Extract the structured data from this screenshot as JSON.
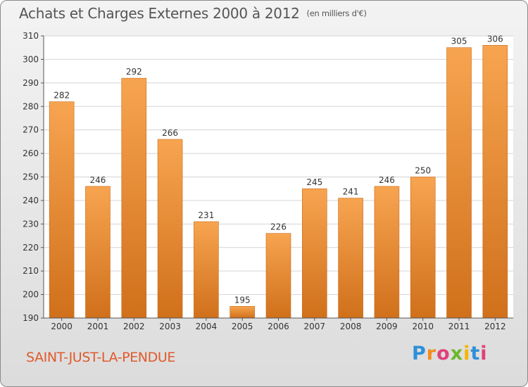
{
  "header": {
    "title": "Achats et Charges Externes 2000 à 2012",
    "subtitle": "(en milliers d'€)"
  },
  "footer": {
    "city": "SAINT-JUST-LA-PENDUE",
    "logo_letters": [
      "P",
      "r",
      "o",
      "x",
      "i",
      "t",
      "i"
    ],
    "logo_colors": [
      "#2f8fd8",
      "#f28c1e",
      "#e0407a",
      "#6bb82a",
      "#f6b400",
      "#2f8fd8",
      "#e0407a"
    ]
  },
  "colors": {
    "bar_light": "#f7a450",
    "bar_dark": "#d0701b",
    "grid": "#d4d4d4",
    "axis": "#555555",
    "text": "#333333"
  },
  "chart_data": {
    "type": "bar",
    "categories": [
      "2000",
      "2001",
      "2002",
      "2003",
      "2004",
      "2005",
      "2006",
      "2007",
      "2008",
      "2009",
      "2010",
      "2011",
      "2012"
    ],
    "values": [
      282,
      246,
      292,
      266,
      231,
      195,
      226,
      245,
      241,
      246,
      250,
      305,
      306
    ],
    "ylim": [
      190,
      310
    ],
    "yticks": [
      190,
      200,
      210,
      220,
      230,
      240,
      250,
      260,
      270,
      280,
      290,
      300,
      310
    ],
    "grid": true
  }
}
